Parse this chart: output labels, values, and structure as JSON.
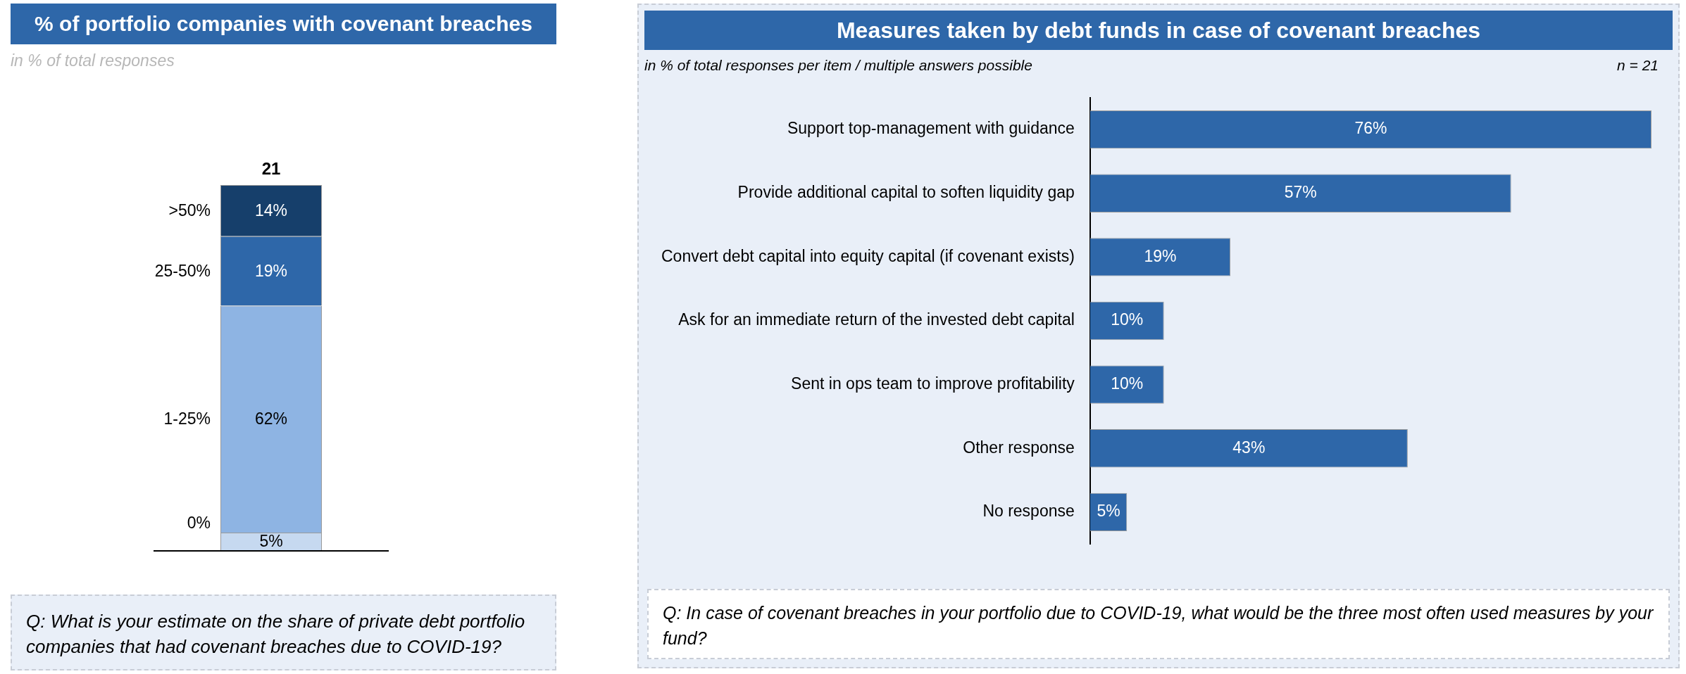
{
  "chart_data": [
    {
      "type": "bar",
      "title": "% of portfolio companies with covenant breaches",
      "subtitle": "in % of total responses",
      "categories": [
        null
      ],
      "stacked": true,
      "legend": false,
      "grid": false,
      "tick_labels": false,
      "series": [
        {
          "name": "0%",
          "color": "#c6d9f0",
          "values": [
            5
          ],
          "value_labels": [
            "5%"
          ]
        },
        {
          "name": "1-25%",
          "color": "#8eb4e3",
          "values": [
            62
          ],
          "value_labels": [
            "62%"
          ]
        },
        {
          "name": "25-50%",
          "color": "#2e67a9",
          "values": [
            19
          ],
          "value_labels": [
            "19%"
          ]
        },
        {
          "name": ">50%",
          "color": "#163f6b",
          "values": [
            14
          ],
          "value_labels": [
            "14%"
          ]
        }
      ],
      "annotations": [
        {
          "text": "21",
          "y": 100
        },
        "Q: What is your estimate on the share of private debt portfolio companies that had covenant breaches due to COVID-19?"
      ]
    },
    {
      "type": "bar",
      "orientation": "horizontal",
      "title": "Measures taken by debt funds in case of covenant breaches",
      "subtitle": "in % of total responses per item / multiple answers possible",
      "legend": false,
      "grid": false,
      "tick_labels": "y",
      "categories": [
        "Support top-management with guidance",
        "Provide additional capital to soften liquidity gap",
        "Convert debt capital into equity capital (if covenant exists)",
        "Ask for an immediate return of the invested debt capital",
        "Sent in ops team to improve profitability",
        "Other response",
        "No response"
      ],
      "values": [
        76,
        57,
        19,
        10,
        10,
        43,
        5
      ],
      "color": "#2e67a9",
      "value_labels": [
        "76%",
        "57%",
        "19%",
        "10%",
        "10%",
        "43%",
        "5%"
      ],
      "annotations": [
        "n = 21",
        "Q: In case of covenant breaches in your portfolio due to COVID-19, what would be the three most often used measures by your fund?"
      ]
    }
  ]
}
